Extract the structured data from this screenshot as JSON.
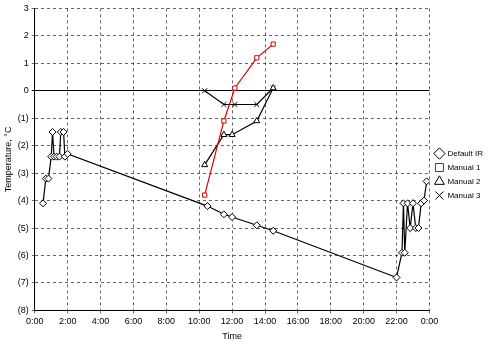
{
  "chart_data": {
    "type": "line",
    "x_label": "Time",
    "y_label": "Temperature, °C",
    "xlim": [
      0,
      24
    ],
    "xticks": [
      {
        "value": 0,
        "label": "0:00"
      },
      {
        "value": 2,
        "label": "2:00"
      },
      {
        "value": 4,
        "label": "4:00"
      },
      {
        "value": 6,
        "label": "6:00"
      },
      {
        "value": 8,
        "label": "8:00"
      },
      {
        "value": 10,
        "label": "10:00"
      },
      {
        "value": 12,
        "label": "12:00"
      },
      {
        "value": 14,
        "label": "14:00"
      },
      {
        "value": 16,
        "label": "16:00"
      },
      {
        "value": 18,
        "label": "18:00"
      },
      {
        "value": 20,
        "label": "20:00"
      },
      {
        "value": 22,
        "label": "22:00"
      },
      {
        "value": 24,
        "label": "0:00"
      }
    ],
    "ylim": [
      -8,
      3
    ],
    "yticks": [
      {
        "value": -8,
        "label": "(8)"
      },
      {
        "value": -7,
        "label": "(7)"
      },
      {
        "value": -6,
        "label": "(6)"
      },
      {
        "value": -5,
        "label": "(5)"
      },
      {
        "value": -4,
        "label": "(4)"
      },
      {
        "value": -3,
        "label": "(3)"
      },
      {
        "value": -2,
        "label": "(2)"
      },
      {
        "value": -1,
        "label": "(1)"
      },
      0,
      1,
      2,
      3
    ],
    "grid": true,
    "legend": "right",
    "series": [
      {
        "name": "Default IR",
        "color": "#000000",
        "marker": "diamond",
        "line_style": "solid",
        "x": [
          0.5,
          0.67,
          0.83,
          1.0,
          1.08,
          1.17,
          1.33,
          1.5,
          1.58,
          1.75,
          1.83,
          2.0,
          10.5,
          11.5,
          12.0,
          13.5,
          14.5,
          22.0,
          22.33,
          22.42,
          22.5,
          22.67,
          22.83,
          23.0,
          23.17,
          23.33,
          23.5,
          23.67,
          23.83
        ],
        "values": [
          -4.1,
          -3.2,
          -3.2,
          -2.4,
          -1.5,
          -2.4,
          -2.4,
          -2.4,
          -1.5,
          -1.5,
          -2.4,
          -2.3,
          -4.2,
          -4.5,
          -4.6,
          -4.9,
          -5.1,
          -6.8,
          -5.9,
          -4.1,
          -5.9,
          -4.1,
          -5.0,
          -4.1,
          -5.0,
          -5.0,
          -4.1,
          -4.0,
          -3.3
        ]
      },
      {
        "name": "Manual 1",
        "color": "#dd0000",
        "marker": "square",
        "line_style": "solid",
        "x": [
          10.33,
          11.5,
          12.17,
          13.5,
          14.5
        ],
        "values": [
          -3.8,
          -1.1,
          0.1,
          1.2,
          1.7
        ]
      },
      {
        "name": "Manual 2",
        "color": "#000000",
        "marker": "triangle",
        "line_style": "solid",
        "x": [
          10.33,
          11.5,
          12.0,
          13.5,
          14.5
        ],
        "values": [
          -2.7,
          -1.6,
          -1.6,
          -1.1,
          0.1
        ]
      },
      {
        "name": "Manual 3",
        "color": "#000000",
        "marker": "cross",
        "line_style": "solid",
        "x": [
          10.33,
          11.5,
          12.17,
          13.5,
          14.5
        ],
        "values": [
          0,
          -0.5,
          -0.5,
          -0.5,
          0.1
        ]
      }
    ]
  }
}
